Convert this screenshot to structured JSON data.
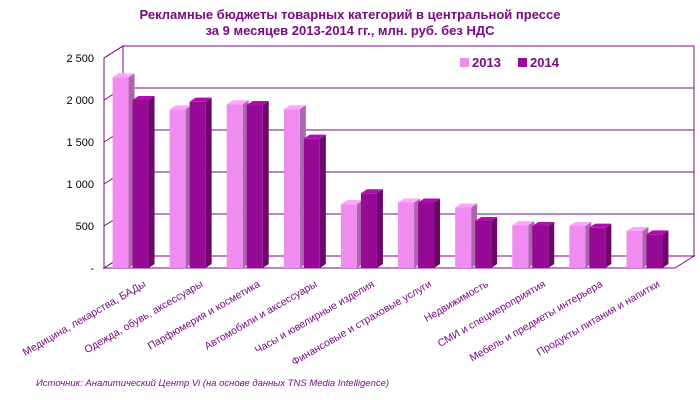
{
  "chart_data": {
    "type": "bar",
    "title_line1": "Рекламные бюджеты товарных категорий в центральной прессе",
    "title_line2": "за 9 месяцев 2013-2014 гг., млн. руб. без НДС",
    "categories": [
      "Медицина, лекарства, БАДы",
      "Одежда, обувь, аксессуары",
      "Парфюмерия и косметика",
      "Автомобили и аксессуары",
      "Часы и ювелирные изделия",
      "Финансовые и страховые услуги",
      "Недвижимость",
      "СМИ и спецмероприятия",
      "Мебель и предметы интерьера",
      "Продукты питания и напитки"
    ],
    "series": [
      {
        "name": "2013",
        "color": "#f08cf0",
        "values": [
          2270,
          1890,
          1950,
          1890,
          760,
          780,
          720,
          510,
          500,
          440
        ]
      },
      {
        "name": "2014",
        "color": "#960a96",
        "values": [
          2000,
          1980,
          1940,
          1540,
          890,
          780,
          560,
          500,
          480,
          400
        ]
      }
    ],
    "ylim": [
      0,
      2500
    ],
    "yticks": [
      0,
      500,
      1000,
      1500,
      2000,
      2500
    ],
    "ytick_labels": [
      "-",
      "500",
      "1 000",
      "1 500",
      "2 000",
      "2 500"
    ],
    "grid": true,
    "legend_position": "top-right"
  },
  "source_text": "Источник: Аналитический Центр Vi (на основе данных TNS Media Intelligence)"
}
